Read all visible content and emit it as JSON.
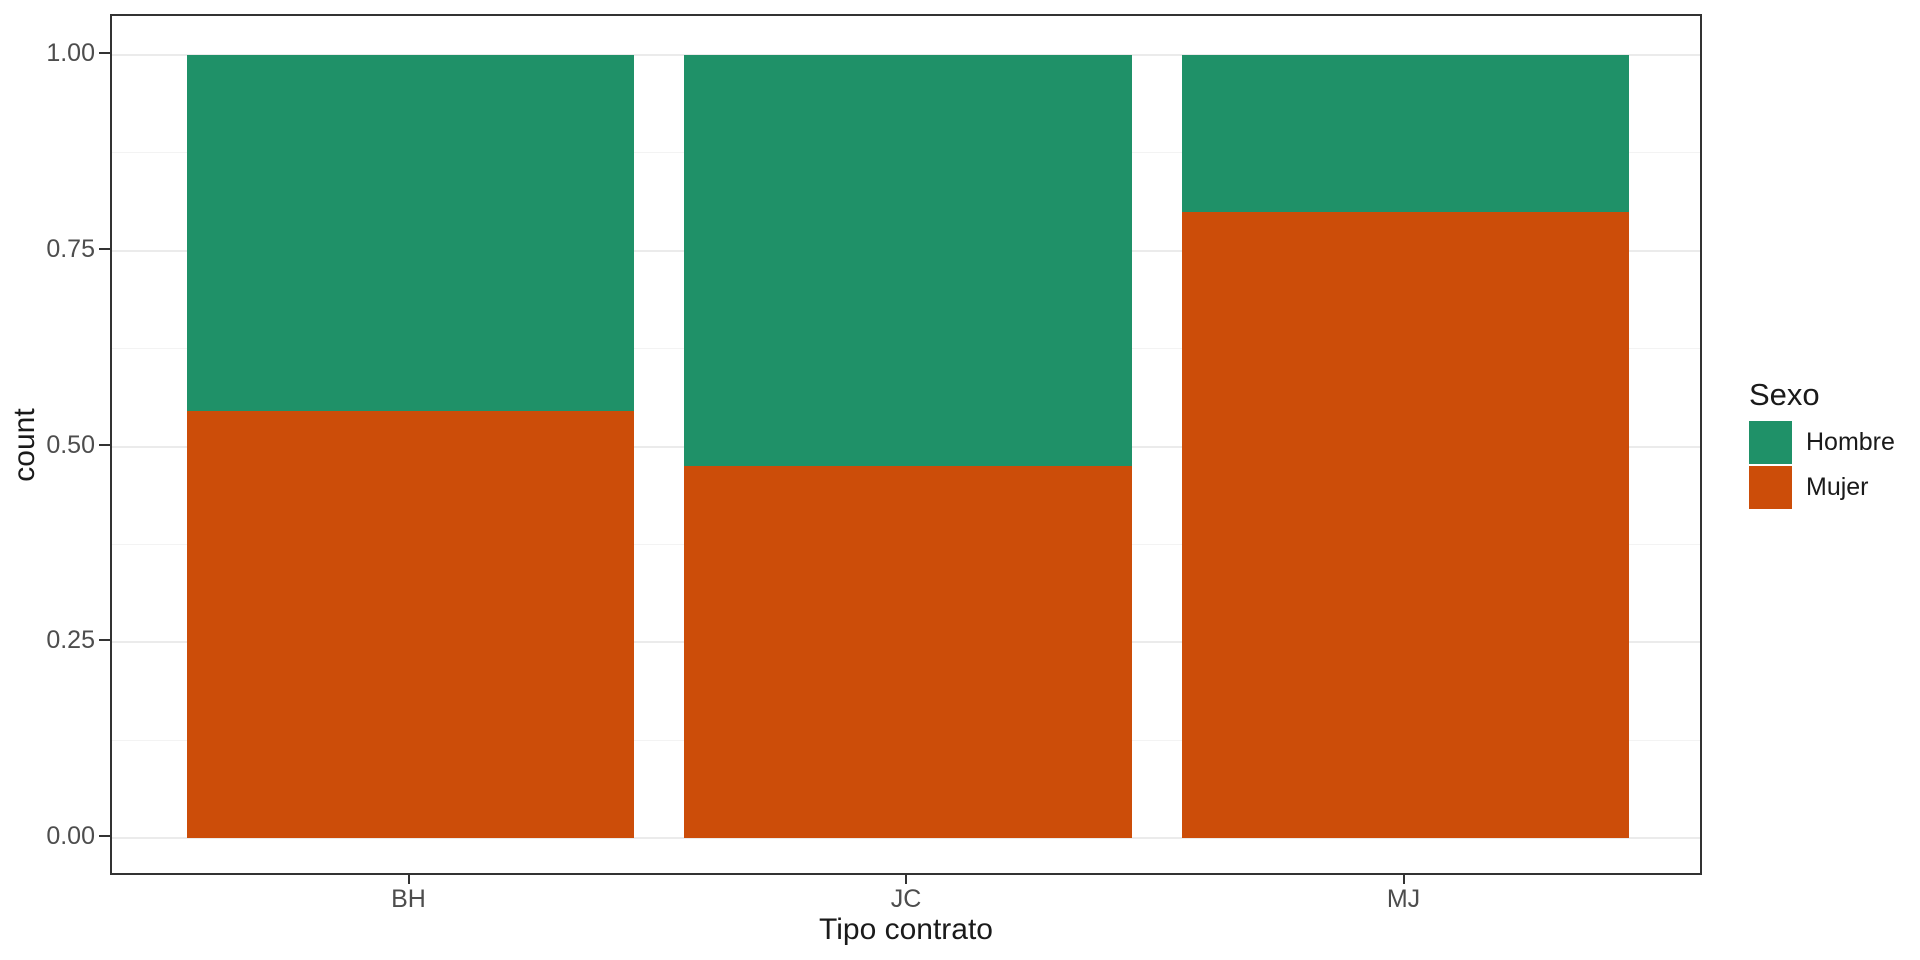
{
  "chart_data": {
    "type": "bar",
    "stacked": true,
    "normalized": true,
    "title": "",
    "xlabel": "Tipo contrato",
    "ylabel": "count",
    "categories": [
      "BH",
      "JC",
      "MJ"
    ],
    "series": [
      {
        "name": "Hombre",
        "color": "#1F9168",
        "values": [
          0.455,
          0.525,
          0.2
        ]
      },
      {
        "name": "Mujer",
        "color": "#CC4D09",
        "values": [
          0.545,
          0.475,
          0.8
        ]
      }
    ],
    "ylim": [
      0,
      1
    ],
    "yticks": [
      {
        "value": 0.0,
        "label": "0.00"
      },
      {
        "value": 0.25,
        "label": "0.25"
      },
      {
        "value": 0.5,
        "label": "0.50"
      },
      {
        "value": 0.75,
        "label": "0.75"
      },
      {
        "value": 1.0,
        "label": "1.00"
      }
    ],
    "minor_gridlines": [
      0.125,
      0.375,
      0.625,
      0.875
    ],
    "grid": true,
    "legend": {
      "title": "Sexo",
      "position": "right",
      "entries": [
        "Hombre",
        "Mujer"
      ]
    },
    "style": {
      "panel_border_color": "#333333",
      "major_grid_color": "#EBEBEB",
      "minor_grid_color": "#F3F3F3",
      "axis_text_color": "#4D4D4D",
      "axis_title_color": "#1a1a1a",
      "panel_background": "#ffffff"
    }
  }
}
